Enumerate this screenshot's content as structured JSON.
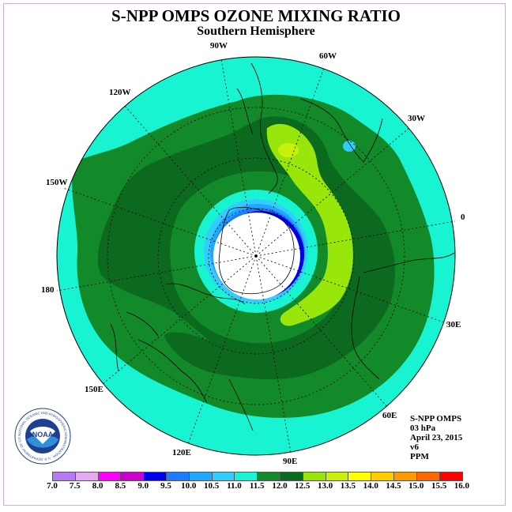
{
  "title": "S-NPP OMPS OZONE MIXING RATIO",
  "subtitle": "Southern Hemisphere",
  "longitude_labels": [
    "90W",
    "60W",
    "30W",
    "0",
    "30E",
    "60E",
    "90E",
    "120E",
    "150E",
    "180",
    "150W",
    "120W"
  ],
  "info": {
    "instrument": "S-NPP OMPS",
    "pressure_level": "03 hPa",
    "date": "April 23, 2015",
    "version": "v6",
    "units": "PPM"
  },
  "logo": {
    "text": "NOAA",
    "ring_text": "NATIONAL OCEANIC AND ATMOSPHERIC ADMINISTRATION · U.S. DEPARTMENT OF COMMERCE"
  },
  "colorbar": {
    "tick_labels": [
      "7.0",
      "7.5",
      "8.0",
      "8.5",
      "9.0",
      "9.5",
      "10.0",
      "10.5",
      "11.0",
      "11.5",
      "12.0",
      "12.5",
      "13.0",
      "13.5",
      "14.0",
      "14.5",
      "15.0",
      "15.5",
      "16.0"
    ],
    "colors": [
      "#b57af0",
      "#e4a9f0",
      "#ff00ff",
      "#cc00cc",
      "#0000ee",
      "#1e7bff",
      "#1ea8ff",
      "#33ccff",
      "#18f3d2",
      "#128a2a",
      "#0c6a1f",
      "#99e60a",
      "#c8f20a",
      "#ffff00",
      "#ffcc00",
      "#ff9900",
      "#ff6600",
      "#ff0000",
      "#d10000",
      "#7a4a3a"
    ]
  },
  "colors": {
    "background_level": "#18f3d2",
    "mid_green": "#128a2a",
    "dark_green": "#0c6a1f",
    "lime": "#99e60a",
    "yellow_green": "#c8f20a",
    "polar_blue": "#33ccff",
    "polar_deep_blue": "#1e7bff",
    "core_blue": "#0000ee"
  }
}
